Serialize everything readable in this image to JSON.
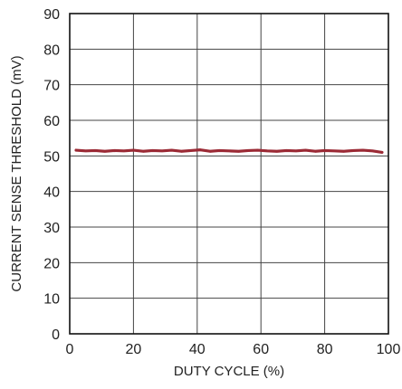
{
  "chart_data": {
    "type": "line",
    "title": "",
    "xlabel": "DUTY CYCLE (%)",
    "ylabel": "CURRENT SENSE THRESHOLD (mV)",
    "xlim": [
      0,
      100
    ],
    "ylim": [
      0,
      90
    ],
    "x_ticks": [
      0,
      20,
      40,
      60,
      80,
      100
    ],
    "y_ticks": [
      0,
      10,
      20,
      30,
      40,
      50,
      60,
      70,
      80,
      90
    ],
    "x_tick_labels": [
      "0",
      "20",
      "40",
      "60",
      "80",
      "100"
    ],
    "y_tick_labels": [
      "0",
      "10",
      "20",
      "30",
      "40",
      "50",
      "60",
      "70",
      "80",
      "90"
    ],
    "grid": true,
    "legend": "none",
    "series": [
      {
        "color": "#9b2a35",
        "x": [
          2,
          5,
          8,
          11,
          14,
          17,
          20,
          23,
          26,
          29,
          32,
          35,
          38,
          41,
          44,
          47,
          50,
          53,
          56,
          59,
          62,
          65,
          68,
          71,
          74,
          77,
          80,
          83,
          86,
          89,
          92,
          95,
          98
        ],
        "y": [
          51.6,
          51.4,
          51.5,
          51.3,
          51.5,
          51.4,
          51.6,
          51.3,
          51.5,
          51.4,
          51.6,
          51.3,
          51.5,
          51.7,
          51.3,
          51.5,
          51.4,
          51.3,
          51.5,
          51.6,
          51.4,
          51.3,
          51.5,
          51.4,
          51.6,
          51.3,
          51.5,
          51.4,
          51.3,
          51.5,
          51.6,
          51.4,
          51.0
        ]
      }
    ]
  }
}
